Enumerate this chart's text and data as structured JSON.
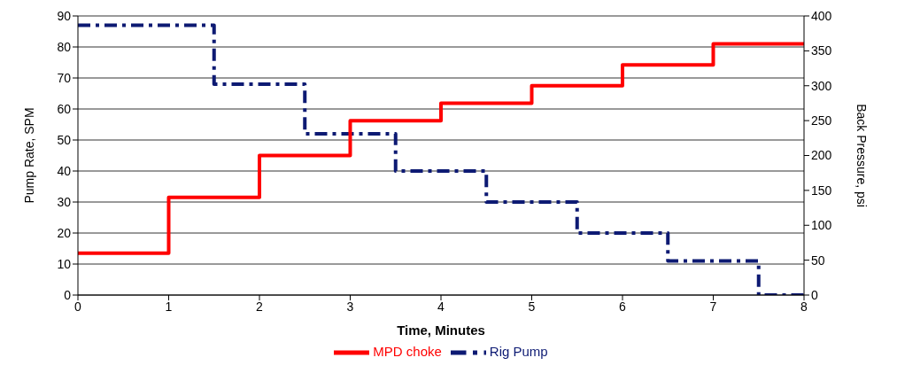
{
  "chart_data": {
    "type": "step",
    "xlabel": "Time, Minutes",
    "ylabel": "Pump Rate, SPM",
    "y2label": "Back Pressure, psi",
    "xlim": [
      0,
      8
    ],
    "xticks": [
      0,
      1,
      2,
      3,
      4,
      5,
      6,
      7,
      8
    ],
    "ylim": [
      0,
      90
    ],
    "yticks": [
      0,
      10,
      20,
      30,
      40,
      50,
      60,
      70,
      80,
      90
    ],
    "y2lim": [
      0,
      400
    ],
    "y2ticks": [
      0,
      50,
      100,
      150,
      200,
      250,
      300,
      350,
      400
    ],
    "grid": "y",
    "legend": "bottom",
    "marker": "none",
    "series": [
      {
        "name": "Rig Pump",
        "color": "#0d1a73",
        "line_style": "dashed",
        "x": [
          0,
          1.5,
          2.5,
          3.5,
          4.5,
          5.5,
          6.5,
          7.5,
          8
        ],
        "values": [
          87,
          68,
          52,
          40,
          30,
          20,
          11,
          0,
          0
        ]
      },
      {
        "name": "MPD choke",
        "color": "#ff0000",
        "line_style": "solid",
        "axis": "y2",
        "x": [
          0,
          1,
          2,
          3,
          4,
          5,
          6,
          7,
          8
        ],
        "values": [
          60,
          140,
          200,
          250,
          275,
          300,
          330,
          360,
          360
        ]
      }
    ]
  }
}
